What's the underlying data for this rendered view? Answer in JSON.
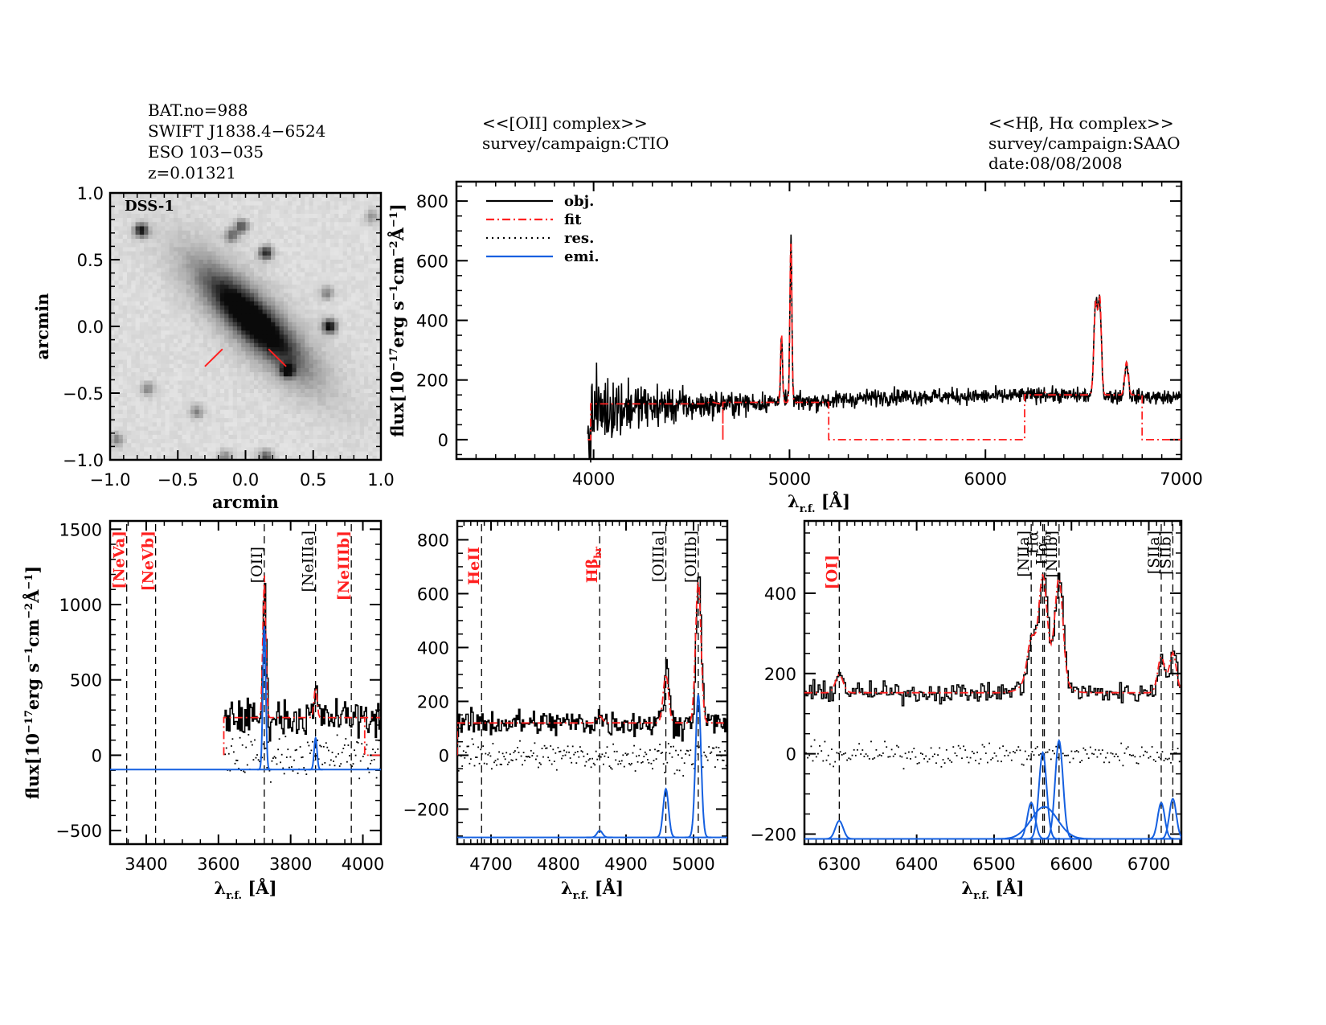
{
  "header": {
    "left": [
      "BAT.no=988",
      "SWIFT J1838.4−6524",
      "ESO 103−035",
      "z=0.01321"
    ],
    "middle": [
      "<<[OII] complex>>",
      "survey/campaign:CTIO"
    ],
    "right": [
      "<<Hβ, Hα complex>>",
      "survey/campaign:SAAO",
      "date:08/08/2008"
    ]
  },
  "colors": {
    "obj": "#000000",
    "fit": "#ff2020",
    "res": "#000000",
    "emi": "#1560e0",
    "red_label": "#ff2020"
  },
  "chart_data": [
    {
      "id": "dss-image",
      "type": "heatmap",
      "title": "DSS-1",
      "xlabel": "arcmin",
      "ylabel": "arcmin",
      "xlim": [
        -1.0,
        1.0
      ],
      "ylim": [
        -1.0,
        1.0
      ],
      "xticks": [
        "−1.0",
        "−0.5",
        "0.0",
        "0.5",
        "1.0"
      ],
      "yticks": [
        "−1.0",
        "−0.5",
        "0.0",
        "0.5",
        "1.0"
      ],
      "xtick_values": [
        -1.0,
        -0.5,
        0.0,
        0.5,
        1.0
      ],
      "ytick_values": [
        -1.0,
        -0.5,
        0.0,
        0.5,
        1.0
      ],
      "galaxy": {
        "center": [
          0.05,
          0.05
        ],
        "position_angle_deg": -45,
        "major_axis": 0.55,
        "minor_axis": 0.16
      },
      "sources": [
        {
          "x": -0.77,
          "y": 0.72,
          "mag": 0.9
        },
        {
          "x": 0.15,
          "y": 0.55,
          "mag": 0.8
        },
        {
          "x": -0.03,
          "y": 0.75,
          "mag": 0.6
        },
        {
          "x": -0.1,
          "y": 0.68,
          "mag": 0.5
        },
        {
          "x": 0.62,
          "y": 0.0,
          "mag": 1.0
        },
        {
          "x": 0.31,
          "y": -0.33,
          "mag": 0.9
        },
        {
          "x": 0.6,
          "y": 0.25,
          "mag": 0.4
        },
        {
          "x": -0.72,
          "y": -0.47,
          "mag": 0.4
        },
        {
          "x": -0.36,
          "y": -0.64,
          "mag": 0.4
        },
        {
          "x": 0.15,
          "y": -0.98,
          "mag": 0.6
        },
        {
          "x": -0.15,
          "y": -0.98,
          "mag": 0.4
        },
        {
          "x": -0.95,
          "y": -0.85,
          "mag": 0.4
        },
        {
          "x": 0.93,
          "y": 0.82,
          "mag": 0.3
        }
      ],
      "slit_marks": [
        {
          "from": [
            -0.3,
            -0.3
          ],
          "to": [
            -0.17,
            -0.17
          ]
        },
        {
          "from": [
            0.17,
            -0.17
          ],
          "to": [
            0.3,
            -0.3
          ]
        }
      ]
    },
    {
      "id": "full-spectrum",
      "type": "line",
      "xlabel": "λr.f. [Å]",
      "ylabel": "flux[10⁻¹⁷erg s⁻¹cm⁻²Å⁻¹]",
      "xlim": [
        3300,
        7000
      ],
      "ylim": [
        -65,
        865
      ],
      "xtick_values": [
        4000,
        5000,
        6000,
        7000
      ],
      "xticks": [
        "4000",
        "5000",
        "6000",
        "7000"
      ],
      "ytick_values": [
        0,
        200,
        400,
        600,
        800
      ],
      "yticks": [
        "0",
        "200",
        "400",
        "600",
        "800"
      ],
      "legend": {
        "position": "top-left",
        "entries": [
          "obj.",
          "fit",
          "res.",
          "emi."
        ]
      },
      "series": [
        {
          "name": "obj.",
          "continuum": [
            [
              3970,
              80
            ],
            [
              4100,
              110
            ],
            [
              4500,
              115
            ],
            [
              4900,
              125
            ],
            [
              5200,
              130
            ],
            [
              5500,
              145
            ],
            [
              6000,
              145
            ],
            [
              6300,
              150
            ],
            [
              6700,
              145
            ],
            [
              7000,
              140
            ]
          ],
          "noise": [
            [
              3970,
              70
            ],
            [
              4200,
              40
            ],
            [
              4600,
              22
            ],
            [
              5000,
              15
            ],
            [
              7000,
              12
            ]
          ],
          "peaks": [
            {
              "x": 4959,
              "y": 355,
              "w": 5
            },
            {
              "x": 5007,
              "y": 665,
              "w": 5
            },
            {
              "x": 6300,
              "y": 160,
              "w": 6
            },
            {
              "x": 6563,
              "y": 455,
              "w": 9
            },
            {
              "x": 6584,
              "y": 460,
              "w": 8
            },
            {
              "x": 6720,
              "y": 260,
              "w": 9
            }
          ]
        },
        {
          "name": "fit",
          "segments": [
            {
              "x": [
                3970,
                3985,
                3985,
                4660,
                4660
              ],
              "y": [
                0,
                0,
                120,
                120,
                0
              ],
              "zero_until": 3970
            },
            {
              "x": [
                4660,
                4660
              ],
              "y": [
                0,
                0
              ]
            },
            {
              "base": 125,
              "from": 4660,
              "to": 5200
            },
            {
              "x": [
                5200,
                5200,
                6200,
                6200
              ],
              "y": [
                125,
                0,
                0,
                150
              ]
            },
            {
              "base": 150,
              "from": 6200,
              "to": 6800
            },
            {
              "x": [
                6800,
                6800,
                7000
              ],
              "y": [
                145,
                0,
                0
              ]
            }
          ],
          "zero_ranges": [
            [
              3985,
              4660
            ],
            [
              5200,
              6200
            ],
            [
              6800,
              7000
            ]
          ],
          "model_ranges": [
            [
              3985,
              4660,
              120
            ],
            [
              4660,
              5200,
              125
            ],
            [
              6200,
              6800,
              150
            ]
          ]
        }
      ]
    },
    {
      "id": "oii-complex",
      "type": "line",
      "xlabel": "λr.f. [Å]",
      "ylabel": "flux[10⁻¹⁷erg s⁻¹cm⁻²Å⁻¹]",
      "xlim": [
        3300,
        4050
      ],
      "ylim": [
        -590,
        1555
      ],
      "xtick_values": [
        3400,
        3600,
        3800,
        4000
      ],
      "xticks": [
        "3400",
        "3600",
        "3800",
        "4000"
      ],
      "ytick_values": [
        -500,
        0,
        500,
        1000,
        1500
      ],
      "yticks": [
        "−500",
        "0",
        "500",
        "1000",
        "1500"
      ],
      "data_range": [
        3615,
        4050
      ],
      "continuum": 250,
      "emission_baseline": -95,
      "lines": [
        {
          "label": "[NeVa]",
          "x": 3346,
          "color": "red"
        },
        {
          "label": "[NeVb]",
          "x": 3426,
          "color": "red"
        },
        {
          "label": "[OII]",
          "x": 3727,
          "color": "black"
        },
        {
          "label": "[NeIIIa]",
          "x": 3869,
          "color": "black"
        },
        {
          "label": "[NeIIIb]",
          "x": 3968,
          "color": "red"
        }
      ],
      "emission": [
        {
          "x": 3727,
          "amp": 950,
          "sigma": 4
        },
        {
          "x": 3869,
          "amp": 210,
          "sigma": 4
        }
      ],
      "obj_peaks": [
        {
          "x": 3727,
          "y": 1140
        },
        {
          "x": 3869,
          "y": 460
        }
      ],
      "fit_zero_after": 4005
    },
    {
      "id": "oiii-hbeta-complex",
      "type": "line",
      "xlabel": "λr.f. [Å]",
      "xlim": [
        4650,
        5050
      ],
      "ylim": [
        -330,
        870
      ],
      "xtick_values": [
        4700,
        4800,
        4900,
        5000
      ],
      "xticks": [
        "4700",
        "4800",
        "4900",
        "5000"
      ],
      "ytick_values": [
        -200,
        0,
        200,
        400,
        600,
        800
      ],
      "yticks": [
        "−200",
        "0",
        "200",
        "400",
        "600",
        "800"
      ],
      "continuum": 120,
      "emission_baseline": -305,
      "lines": [
        {
          "label": "HeII",
          "x": 4686,
          "color": "red"
        },
        {
          "label": "Hβbr",
          "x": 4861,
          "color": "red"
        },
        {
          "label": "[OIIIa]",
          "x": 4959,
          "color": "black"
        },
        {
          "label": "[OIIIb]",
          "x": 5007,
          "color": "black"
        }
      ],
      "emission": [
        {
          "x": 4861,
          "amp": 25,
          "sigma": 4
        },
        {
          "x": 4959,
          "amp": 180,
          "sigma": 4
        },
        {
          "x": 5007,
          "amp": 530,
          "sigma": 4
        }
      ],
      "obj_peaks": [
        {
          "x": 4959,
          "y": 355
        },
        {
          "x": 5007,
          "y": 660
        }
      ]
    },
    {
      "id": "halpha-complex",
      "type": "line",
      "xlabel": "λr.f. [Å]",
      "xlim": [
        6255,
        6742
      ],
      "ylim": [
        -225,
        580
      ],
      "xtick_values": [
        6300,
        6400,
        6500,
        6600,
        6700
      ],
      "xticks": [
        "6300",
        "6400",
        "6500",
        "6600",
        "6700"
      ],
      "ytick_values": [
        -200,
        0,
        200,
        400
      ],
      "yticks": [
        "−200",
        "0",
        "200",
        "400"
      ],
      "continuum": 152,
      "emission_baseline": -212,
      "lines": [
        {
          "label": "[OI]",
          "x": 6300,
          "color": "red"
        },
        {
          "label": "[NIIa]",
          "x": 6548,
          "color": "black"
        },
        {
          "label": "Hα",
          "x": 6563,
          "color": "black"
        },
        {
          "label": "Hαbr",
          "x": 6565,
          "color": "black"
        },
        {
          "label": "[NIIb]",
          "x": 6584,
          "color": "black"
        },
        {
          "label": "[SIIa]",
          "x": 6716,
          "color": "black"
        },
        {
          "label": "[SIIb]",
          "x": 6731,
          "color": "black"
        }
      ],
      "emission": [
        {
          "x": 6300,
          "amp": 45,
          "sigma": 5
        },
        {
          "x": 6548,
          "amp": 90,
          "sigma": 5
        },
        {
          "x": 6563,
          "amp": 215,
          "sigma": 5
        },
        {
          "x": 6565,
          "amp": 80,
          "sigma": 17
        },
        {
          "x": 6584,
          "amp": 245,
          "sigma": 5
        },
        {
          "x": 6716,
          "amp": 90,
          "sigma": 4.5
        },
        {
          "x": 6731,
          "amp": 100,
          "sigma": 4.5
        }
      ]
    }
  ]
}
